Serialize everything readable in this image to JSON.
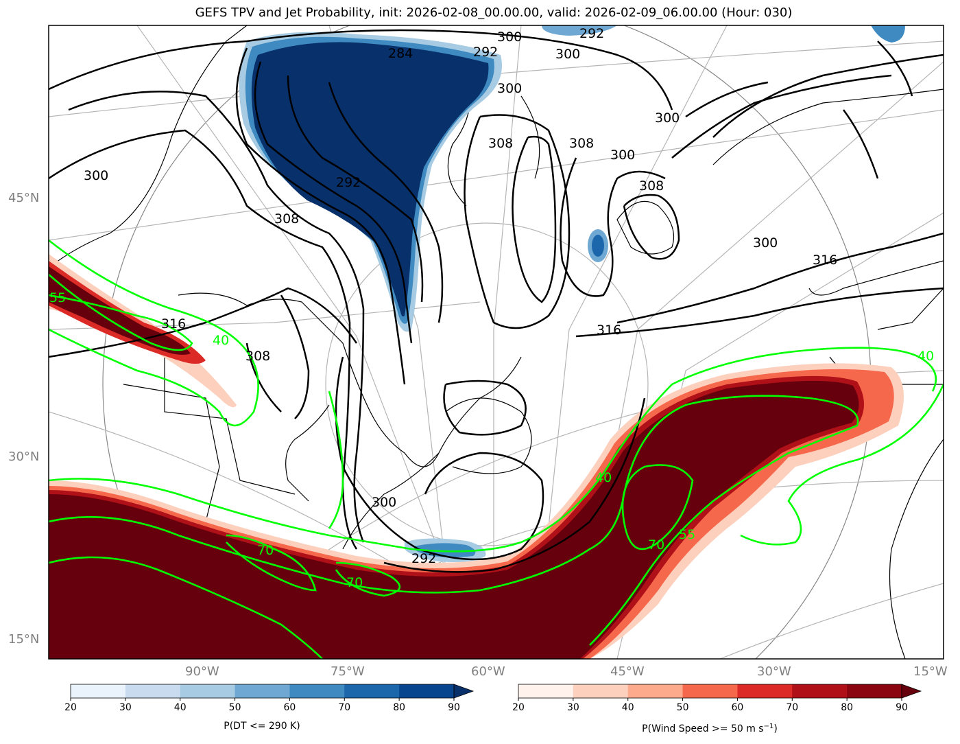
{
  "title": "GEFS TPV and Jet Probability, init: 2026-02-08_00.00.00, valid: 2026-02-09_06.00.00 (Hour: 030)",
  "lat_labels": [
    "45°N",
    "30°N",
    "15°N"
  ],
  "lon_labels": [
    "90°W",
    "75°W",
    "60°W",
    "45°W",
    "30°W",
    "15°W"
  ],
  "colorbars": {
    "dt": {
      "label": "P(DT <= 290 K)",
      "ticks": [
        "20",
        "30",
        "40",
        "50",
        "60",
        "70",
        "80",
        "90"
      ],
      "colors": [
        "#eaf2fb",
        "#c9dcef",
        "#a6cbe3",
        "#6fa9d3",
        "#3f8bc1",
        "#1c66ab",
        "#08458f"
      ],
      "extend_color": "#08306b"
    },
    "jet": {
      "label": "P(Wind Speed >= 50 m s",
      "label_sup": "−1",
      "label_end": ")",
      "ticks": [
        "20",
        "30",
        "40",
        "50",
        "60",
        "70",
        "80",
        "90"
      ],
      "colors": [
        "#fff1ec",
        "#fdd0bd",
        "#fca98c",
        "#f6684c",
        "#dc2a26",
        "#b01018",
        "#8b0510"
      ],
      "extend_color": "#67000d"
    }
  },
  "contour_labels": {
    "dt": [
      "300",
      "292",
      "292",
      "300",
      "284",
      "292",
      "300",
      "308",
      "300",
      "308",
      "300",
      "308",
      "300",
      "316",
      "316",
      "300",
      "308",
      "308",
      "316",
      "300",
      "292"
    ],
    "jet": [
      "40",
      "40",
      "55",
      "70",
      "70",
      "40",
      "55",
      "70"
    ]
  },
  "colors": {
    "tpv_fill": "#08306b",
    "jet_fill": "#67000d",
    "jet_contour": "#00ff00",
    "dt_contour": "#000000",
    "graticule": "#b0b0b0"
  }
}
